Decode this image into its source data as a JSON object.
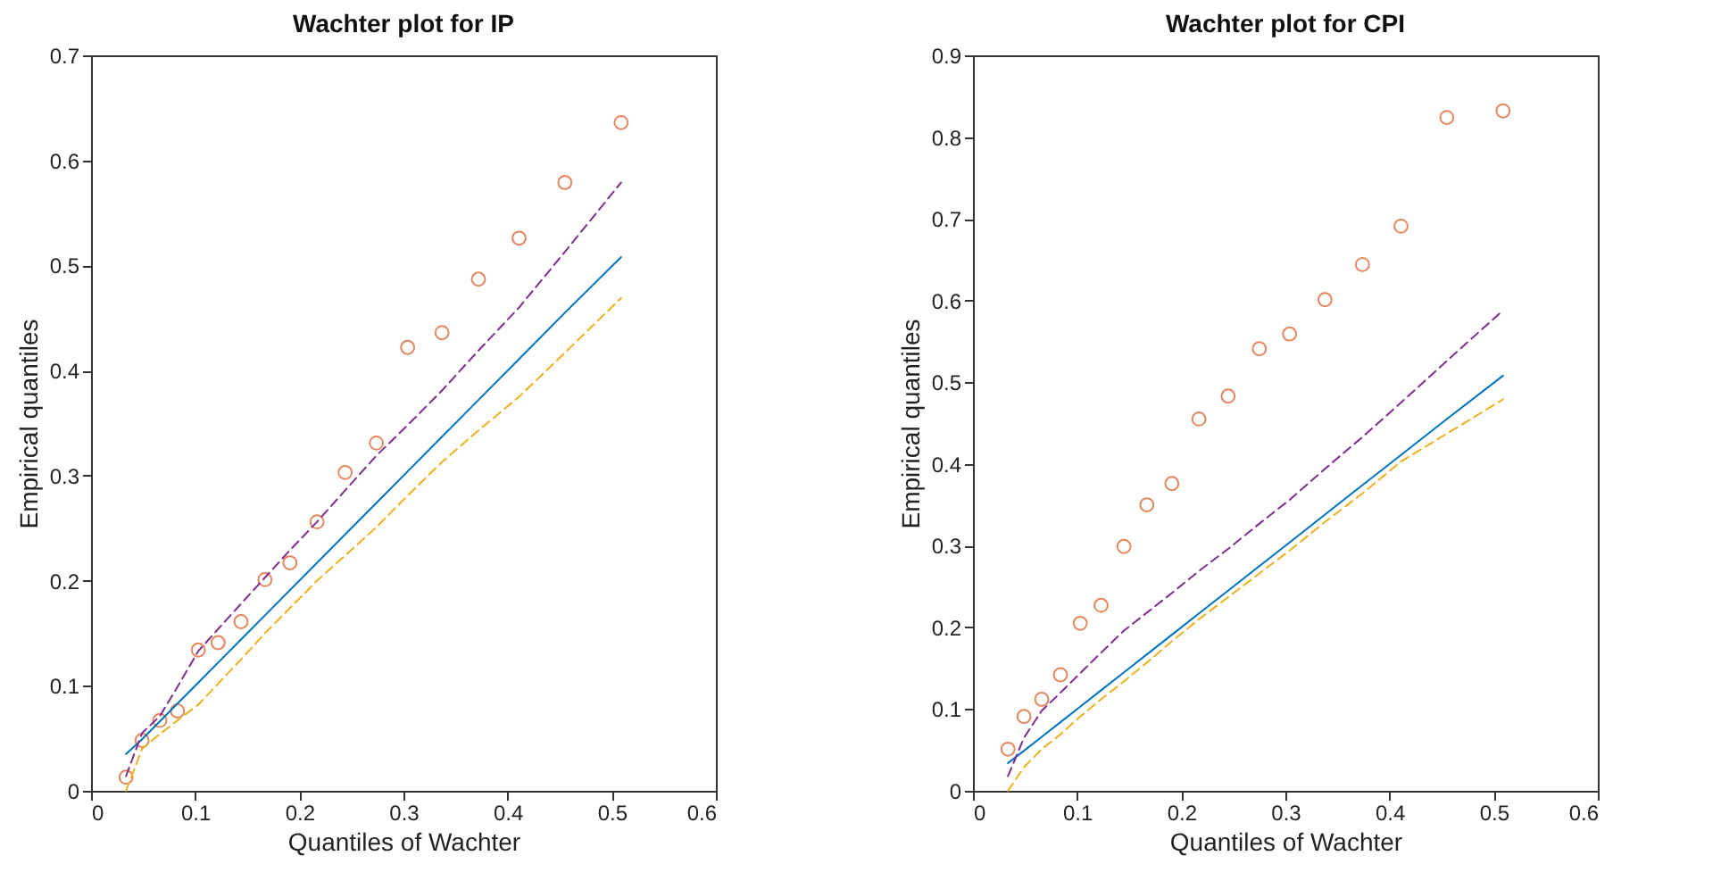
{
  "chart_data": [
    {
      "type": "scatter",
      "title": "Wachter plot for IP",
      "xlabel": "Quantiles of Wachter",
      "ylabel": "Empirical quantiles",
      "x": [
        0.0336,
        0.049,
        0.066,
        0.083,
        0.103,
        0.122,
        0.144,
        0.167,
        0.191,
        0.217,
        0.244,
        0.274,
        0.304,
        0.337,
        0.372,
        0.411,
        0.455,
        0.509
      ],
      "series": [
        {
          "marker": "circle",
          "color": "#d95319",
          "values": [
            0.013,
            0.048,
            0.067,
            0.076,
            0.134,
            0.141,
            0.161,
            0.201,
            0.217,
            0.256,
            0.303,
            0.331,
            0.422,
            0.436,
            0.487,
            0.526,
            0.579,
            0.636
          ]
        },
        {
          "type": "line",
          "line_style": "solid",
          "color": "#0072bd",
          "values": [
            0.035,
            0.049,
            0.066,
            0.083,
            0.103,
            0.122,
            0.144,
            0.167,
            0.191,
            0.217,
            0.244,
            0.274,
            0.304,
            0.337,
            0.372,
            0.411,
            0.455,
            0.508
          ]
        },
        {
          "type": "line",
          "line_style": "dashed",
          "color": "#7e2f8e",
          "values": [
            0.014,
            0.055,
            0.071,
            0.099,
            0.133,
            0.154,
            0.178,
            0.203,
            0.229,
            0.256,
            0.286,
            0.319,
            0.348,
            0.381,
            0.419,
            0.46,
            0.513,
            0.579
          ]
        },
        {
          "type": "line",
          "line_style": "dashed",
          "color": "#edb120",
          "values": [
            0.0,
            0.04,
            0.054,
            0.067,
            0.082,
            0.102,
            0.125,
            0.15,
            0.174,
            0.2,
            0.224,
            0.251,
            0.281,
            0.313,
            0.343,
            0.375,
            0.417,
            0.469
          ]
        }
      ],
      "xlim": [
        0,
        0.6
      ],
      "xticks": [
        0,
        0.1,
        0.2,
        0.3,
        0.4,
        0.5,
        0.6
      ],
      "ylim": [
        0,
        0.7
      ],
      "yticks": [
        0,
        0.1,
        0.2,
        0.3,
        0.4,
        0.5,
        0.6,
        0.7
      ],
      "grid": false
    },
    {
      "type": "scatter",
      "title": "Wachter plot for CPI",
      "xlabel": "Quantiles of Wachter",
      "ylabel": "Empirical quantiles",
      "x": [
        0.0336,
        0.049,
        0.066,
        0.084,
        0.103,
        0.123,
        0.145,
        0.167,
        0.191,
        0.217,
        0.245,
        0.275,
        0.304,
        0.338,
        0.374,
        0.411,
        0.455,
        0.509
      ],
      "series": [
        {
          "marker": "circle",
          "color": "#d95319",
          "values": [
            0.051,
            0.091,
            0.112,
            0.142,
            0.205,
            0.227,
            0.299,
            0.35,
            0.376,
            0.455,
            0.483,
            0.541,
            0.559,
            0.601,
            0.644,
            0.691,
            0.824,
            0.832
          ]
        },
        {
          "type": "line",
          "line_style": "solid",
          "color": "#0072bd",
          "values": [
            0.034,
            0.049,
            0.066,
            0.084,
            0.103,
            0.123,
            0.145,
            0.167,
            0.191,
            0.217,
            0.245,
            0.275,
            0.304,
            0.338,
            0.374,
            0.411,
            0.455,
            0.508
          ]
        },
        {
          "type": "line",
          "line_style": "dashed",
          "color": "#7e2f8e",
          "values": [
            0.018,
            0.065,
            0.098,
            0.12,
            0.144,
            0.169,
            0.196,
            0.218,
            0.242,
            0.269,
            0.296,
            0.327,
            0.356,
            0.394,
            0.433,
            0.475,
            0.526,
            0.588
          ]
        },
        {
          "type": "line",
          "line_style": "dashed",
          "color": "#edb120",
          "values": [
            0.0,
            0.029,
            0.051,
            0.069,
            0.091,
            0.112,
            0.134,
            0.157,
            0.183,
            0.21,
            0.237,
            0.266,
            0.294,
            0.329,
            0.364,
            0.403,
            0.437,
            0.479
          ]
        }
      ],
      "xlim": [
        0,
        0.6
      ],
      "xticks": [
        0,
        0.1,
        0.2,
        0.3,
        0.4,
        0.5,
        0.6
      ],
      "ylim": [
        0,
        0.9
      ],
      "yticks": [
        0,
        0.1,
        0.2,
        0.3,
        0.4,
        0.5,
        0.6,
        0.7,
        0.8,
        0.9
      ],
      "grid": false
    }
  ]
}
